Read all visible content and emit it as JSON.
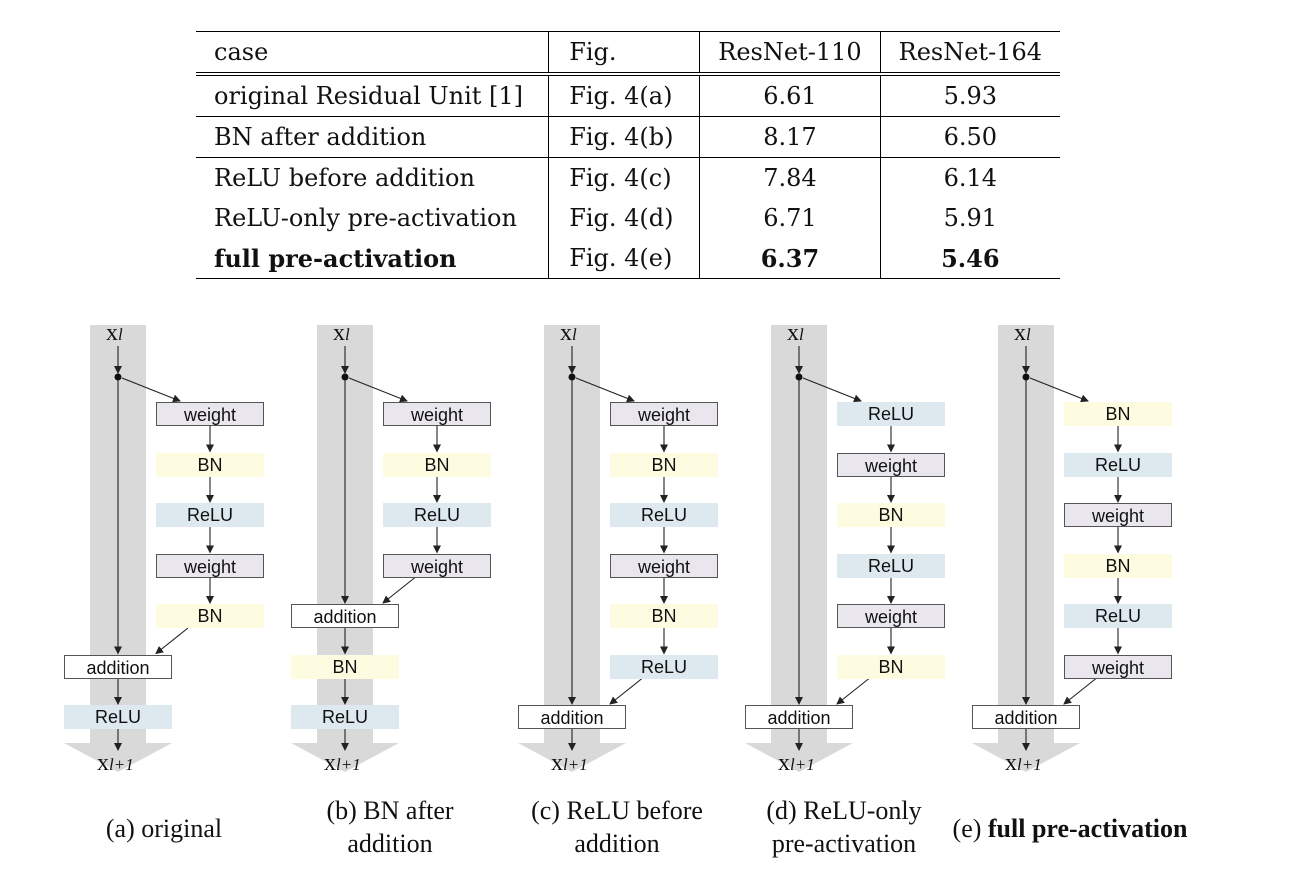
{
  "table": {
    "headers": [
      "case",
      "Fig.",
      "ResNet-110",
      "ResNet-164"
    ],
    "rows": [
      {
        "case": "original Residual Unit [1]",
        "fig": "Fig. 4(a)",
        "r110": "6.61",
        "r164": "5.93"
      },
      {
        "case": "BN after addition",
        "fig": "Fig. 4(b)",
        "r110": "8.17",
        "r164": "6.50"
      },
      {
        "case": "ReLU before addition",
        "fig": "Fig. 4(c)",
        "r110": "7.84",
        "r164": "6.14"
      },
      {
        "case": "ReLU-only pre-activation",
        "fig": "Fig. 4(d)",
        "r110": "6.71",
        "r164": "5.91"
      },
      {
        "case": "full pre-activation",
        "fig": "Fig. 4(e)",
        "r110": "6.37",
        "r164": "5.46"
      }
    ]
  },
  "symbols": {
    "input_main": "x",
    "input_sub": "l",
    "output_main": "x",
    "output_sub": "l+1"
  },
  "diagrams": [
    {
      "id": "a",
      "branch": [
        "weight",
        "BN",
        "ReLU",
        "weight",
        "BN"
      ],
      "post": [
        "ReLU"
      ],
      "caption_prefix": "(a) original",
      "caption_line2": "",
      "caption_bold": ""
    },
    {
      "id": "b",
      "branch": [
        "weight",
        "BN",
        "ReLU",
        "weight"
      ],
      "post": [
        "BN",
        "ReLU"
      ],
      "caption_prefix": "(b) BN after",
      "caption_line2": "addition",
      "caption_bold": ""
    },
    {
      "id": "c",
      "branch": [
        "weight",
        "BN",
        "ReLU",
        "weight",
        "BN",
        "ReLU"
      ],
      "post": [],
      "caption_prefix": "(c) ReLU before",
      "caption_line2": "addition",
      "caption_bold": ""
    },
    {
      "id": "d",
      "branch": [
        "ReLU",
        "weight",
        "BN",
        "ReLU",
        "weight",
        "BN"
      ],
      "post": [],
      "caption_prefix": "(d) ReLU-only",
      "caption_line2": "pre-activation",
      "caption_bold": ""
    },
    {
      "id": "e",
      "branch": [
        "BN",
        "ReLU",
        "weight",
        "BN",
        "ReLU",
        "weight"
      ],
      "post": [],
      "caption_prefix": "(e) ",
      "caption_line2": "",
      "caption_bold": "full pre-activation"
    }
  ],
  "addition_label": "addition"
}
